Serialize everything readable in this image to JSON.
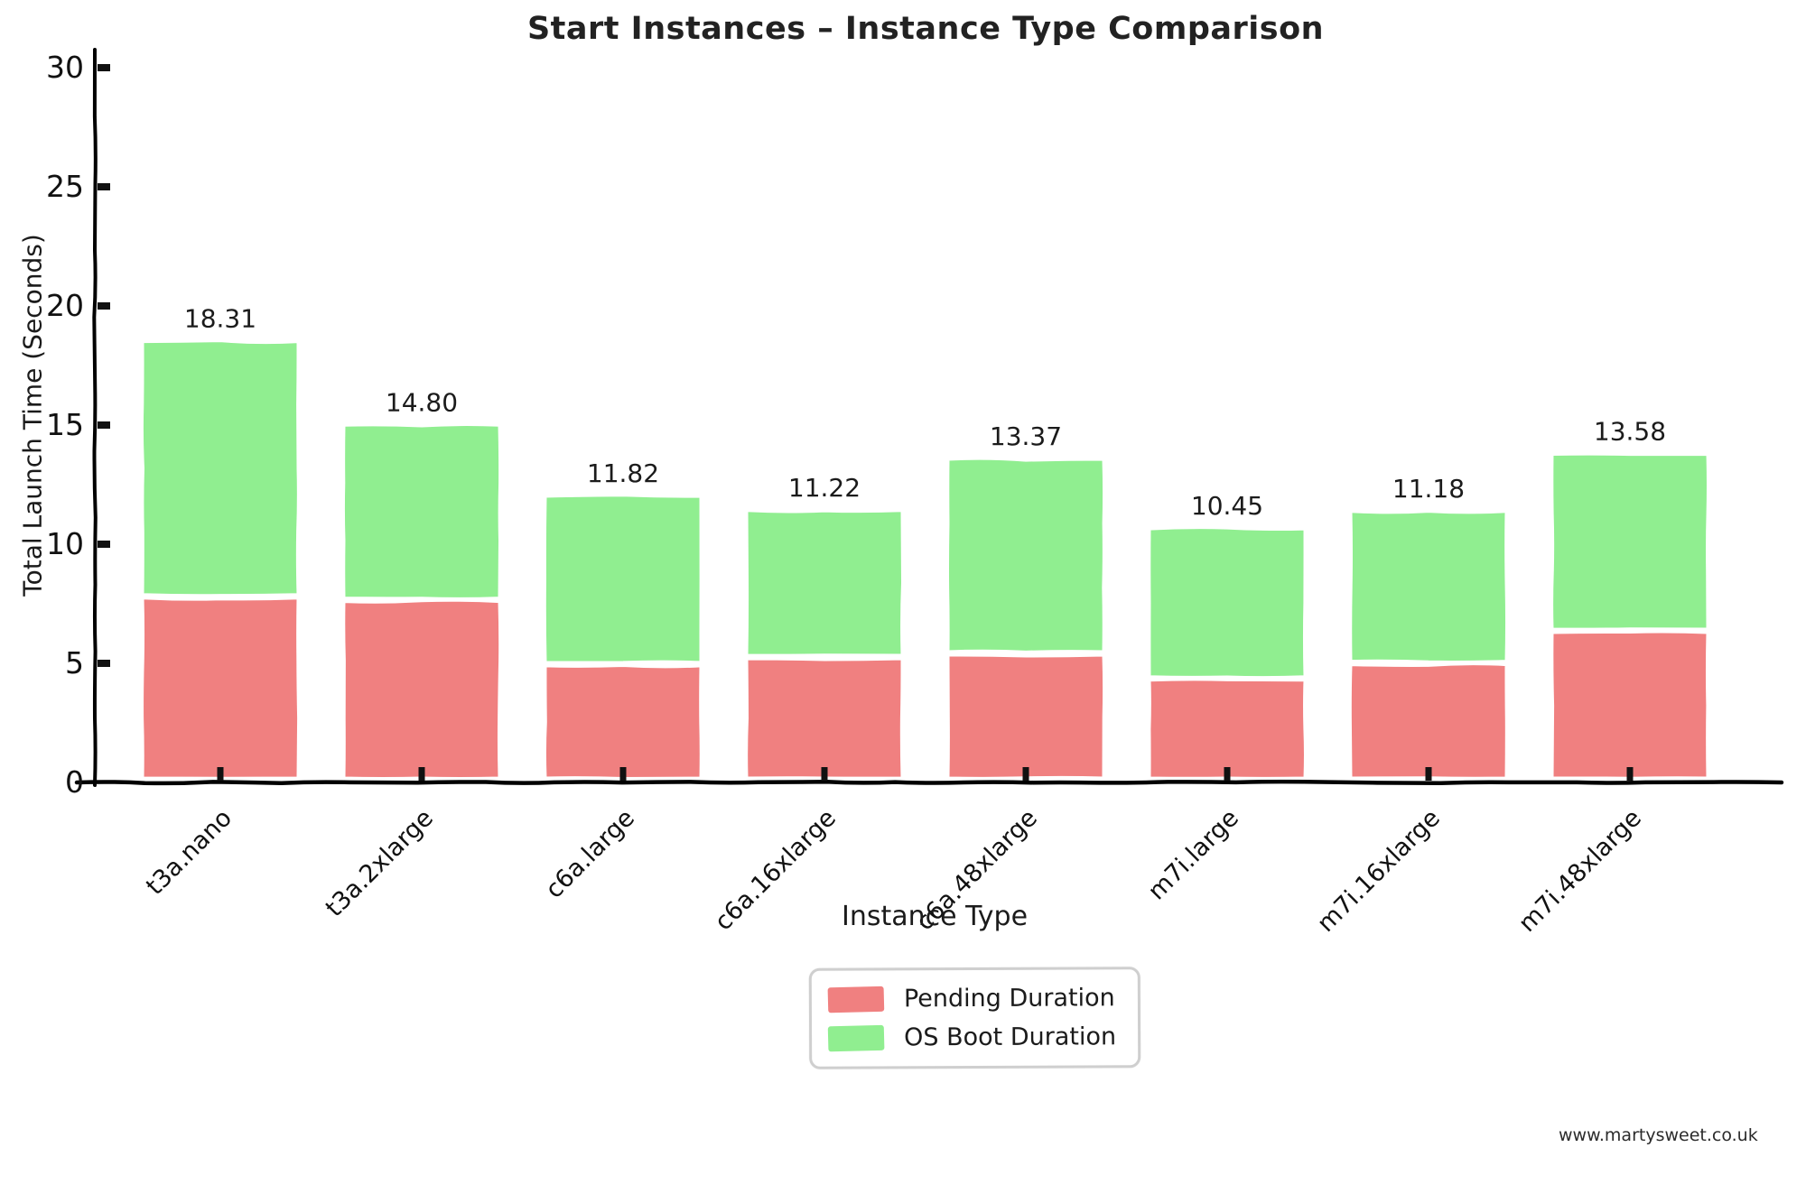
{
  "chart_data": {
    "type": "bar",
    "stacked": true,
    "title": "Start Instances – Instance Type Comparison",
    "xlabel": "Instance Type",
    "ylabel": "Total Launch Time (Seconds)",
    "ylim": [
      0,
      30
    ],
    "yticks": [
      0,
      5,
      10,
      15,
      20,
      25,
      30
    ],
    "grid": false,
    "legend_position": "bottom-center",
    "categories": [
      "t3a.nano",
      "t3a.2xlarge",
      "c6a.large",
      "c6a.16xlarge",
      "c6a.48xlarge",
      "m7i.large",
      "m7i.16xlarge",
      "m7i.48xlarge"
    ],
    "series": [
      {
        "name": "Pending Duration",
        "color": "#f08080",
        "values": [
          7.55,
          7.4,
          4.7,
          5.0,
          5.15,
          4.1,
          4.75,
          6.1
        ]
      },
      {
        "name": "OS Boot Duration",
        "color": "#90ee90",
        "values": [
          10.76,
          7.4,
          7.12,
          6.22,
          8.22,
          6.35,
          6.43,
          7.48
        ]
      }
    ],
    "totals": [
      18.31,
      14.8,
      11.82,
      11.22,
      13.37,
      10.45,
      11.18,
      13.58
    ],
    "total_labels": [
      "18.31",
      "14.80",
      "11.82",
      "11.22",
      "13.37",
      "10.45",
      "11.18",
      "13.58"
    ]
  },
  "footer": {
    "watermark": "www.martysweet.co.uk"
  }
}
